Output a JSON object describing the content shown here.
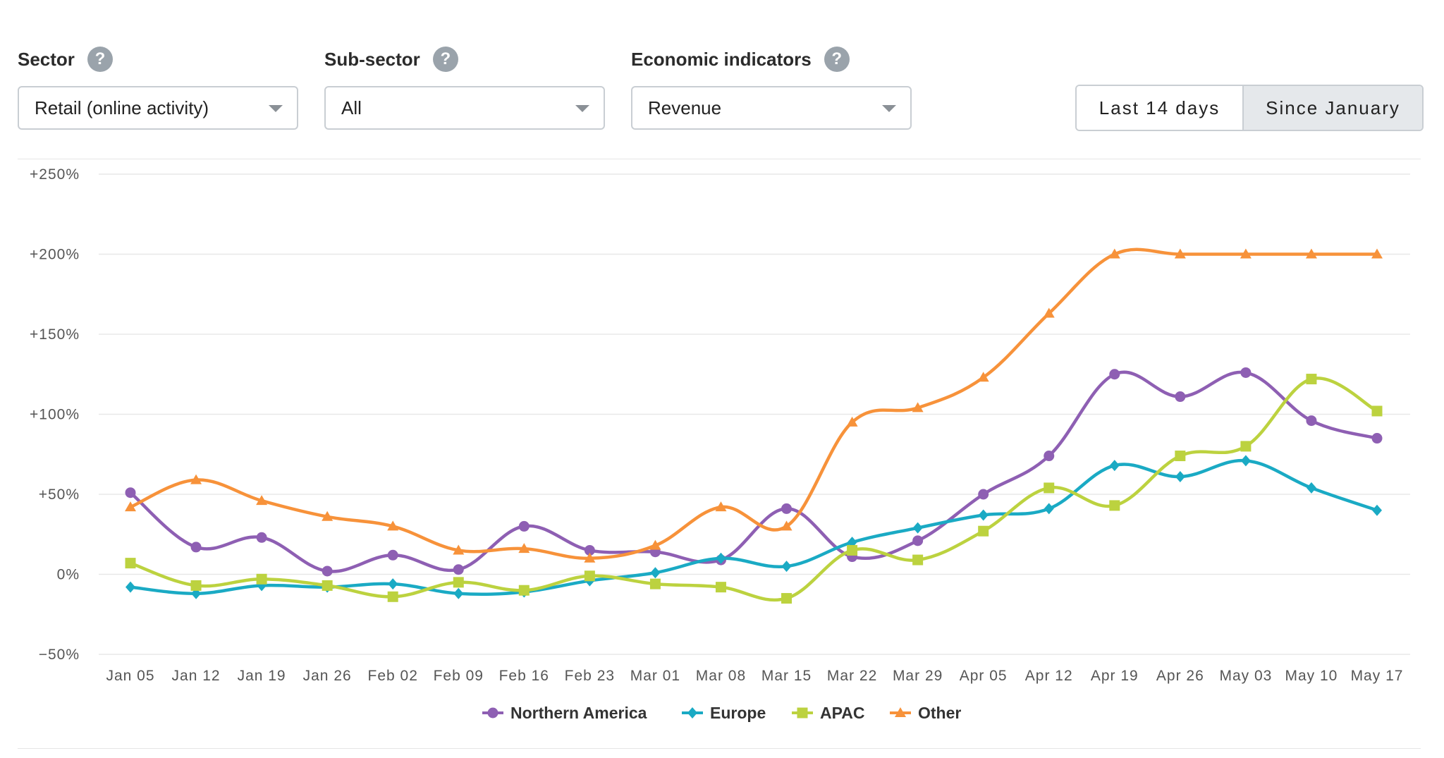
{
  "filters": {
    "sector": {
      "label": "Sector",
      "value": "Retail (online activity)",
      "help_icon": "question-icon"
    },
    "subsector": {
      "label": "Sub-sector",
      "value": "All",
      "help_icon": "question-icon"
    },
    "indicators": {
      "label": "Economic indicators",
      "value": "Revenue",
      "help_icon": "question-icon"
    }
  },
  "range": {
    "last14": "Last 14 days",
    "since_jan": "Since January",
    "selected": "Since January"
  },
  "colors": {
    "Northern America": "#8e5fb3",
    "Europe": "#1aaac4",
    "APAC": "#bcd23f",
    "Other": "#f7923a",
    "grid": "#e8e8e8",
    "selected_bg": "#e5e8eb"
  },
  "chart_data": {
    "type": "line",
    "x": [
      "Jan 05",
      "Jan 12",
      "Jan 19",
      "Jan 26",
      "Feb 02",
      "Feb 09",
      "Feb 16",
      "Feb 23",
      "Mar 01",
      "Mar 08",
      "Mar 15",
      "Mar 22",
      "Mar 29",
      "Apr 05",
      "Apr 12",
      "Apr 19",
      "Apr 26",
      "May 03",
      "May 10",
      "May 17"
    ],
    "y_ticks": [
      {
        "value": 250,
        "label": "+250%"
      },
      {
        "value": 200,
        "label": "+200%"
      },
      {
        "value": 150,
        "label": "+150%"
      },
      {
        "value": 100,
        "label": "+100%"
      },
      {
        "value": 50,
        "label": "+50%"
      },
      {
        "value": 0,
        "label": "0%"
      },
      {
        "value": -50,
        "label": "−50%"
      }
    ],
    "ylim": [
      -50,
      250
    ],
    "grid": true,
    "legend": "bottom-center",
    "series": [
      {
        "name": "Northern America",
        "marker": "circle",
        "values": [
          51,
          17,
          23,
          2,
          12,
          3,
          30,
          15,
          14,
          9,
          41,
          11,
          21,
          50,
          74,
          125,
          111,
          126,
          96,
          85
        ]
      },
      {
        "name": "Europe",
        "marker": "diamond",
        "values": [
          -8,
          -12,
          -7,
          -8,
          -6,
          -12,
          -11,
          -4,
          1,
          10,
          5,
          20,
          29,
          37,
          41,
          68,
          61,
          71,
          54,
          40
        ]
      },
      {
        "name": "APAC",
        "marker": "square",
        "values": [
          7,
          -7,
          -3,
          -7,
          -14,
          -5,
          -10,
          -1,
          -6,
          -8,
          -15,
          15,
          9,
          27,
          54,
          43,
          74,
          80,
          122,
          102
        ]
      },
      {
        "name": "Other",
        "marker": "triangle",
        "values": [
          42,
          59,
          46,
          36,
          30,
          15,
          16,
          10,
          18,
          42,
          30,
          95,
          104,
          123,
          163,
          200,
          200,
          200,
          200,
          200
        ]
      }
    ]
  }
}
